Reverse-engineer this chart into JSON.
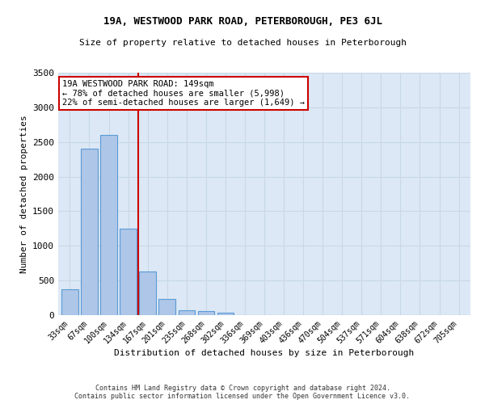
{
  "title1": "19A, WESTWOOD PARK ROAD, PETERBOROUGH, PE3 6JL",
  "title2": "Size of property relative to detached houses in Peterborough",
  "xlabel": "Distribution of detached houses by size in Peterborough",
  "ylabel": "Number of detached properties",
  "categories": [
    "33sqm",
    "67sqm",
    "100sqm",
    "134sqm",
    "167sqm",
    "201sqm",
    "235sqm",
    "268sqm",
    "302sqm",
    "336sqm",
    "369sqm",
    "403sqm",
    "436sqm",
    "470sqm",
    "504sqm",
    "537sqm",
    "571sqm",
    "604sqm",
    "638sqm",
    "672sqm",
    "705sqm"
  ],
  "values": [
    370,
    2400,
    2600,
    1250,
    630,
    230,
    75,
    55,
    40,
    5,
    0,
    0,
    0,
    0,
    0,
    0,
    0,
    0,
    0,
    0,
    0
  ],
  "bar_color": "#aec6e8",
  "bar_edge_color": "#5b9bd5",
  "grid_color": "#c8d8e8",
  "background_color": "#dce8f5",
  "vline_x": 3.5,
  "vline_color": "#cc0000",
  "annotation_text": "19A WESTWOOD PARK ROAD: 149sqm\n← 78% of detached houses are smaller (5,998)\n22% of semi-detached houses are larger (1,649) →",
  "annotation_box_color": "white",
  "annotation_box_edge": "#cc0000",
  "footer1": "Contains HM Land Registry data © Crown copyright and database right 2024.",
  "footer2": "Contains public sector information licensed under the Open Government Licence v3.0.",
  "ylim": [
    0,
    3500
  ],
  "yticks": [
    0,
    500,
    1000,
    1500,
    2000,
    2500,
    3000,
    3500
  ]
}
